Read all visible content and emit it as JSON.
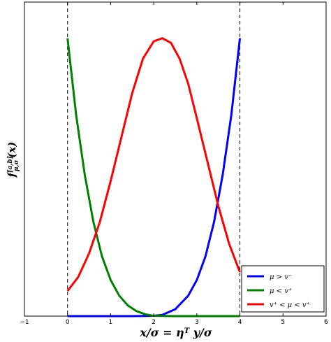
{
  "chart_data": {
    "type": "line",
    "title": "",
    "xlabel": "x/σ = η",
    "xlabel_sup": "T",
    "xlabel_tail": " y/σ",
    "ylabel": "f",
    "ylabel_sup": "[a,b]",
    "ylabel_sub": "μ,σ",
    "ylabel_tail": "(x)",
    "xlim": [
      -1,
      6
    ],
    "ylim": [
      0,
      1.0
    ],
    "x_ticks": [
      -1,
      0,
      1,
      2,
      3,
      4,
      5,
      6
    ],
    "y_ticks_shown": false,
    "grid": false,
    "legend_position": "lower-right",
    "vlines": [
      0,
      4
    ],
    "series": [
      {
        "name": "μ > v⁻",
        "color": "#0000ff",
        "x": [
          0,
          1.0,
          1.5,
          2.0,
          2.2,
          2.5,
          2.8,
          3.0,
          3.2,
          3.4,
          3.6,
          3.8,
          4.0
        ],
        "y": [
          0.0,
          0.0,
          0.0,
          0.001,
          0.004,
          0.022,
          0.065,
          0.115,
          0.19,
          0.3,
          0.45,
          0.64,
          0.885
        ]
      },
      {
        "name": "μ < v⁺",
        "color": "#008000",
        "x": [
          0,
          0.2,
          0.4,
          0.6,
          0.8,
          1.0,
          1.2,
          1.4,
          1.6,
          1.8,
          2.0,
          2.5,
          3.0,
          4.0
        ],
        "y": [
          0.885,
          0.64,
          0.45,
          0.3,
          0.19,
          0.115,
          0.065,
          0.034,
          0.016,
          0.006,
          0.001,
          0.0,
          0.0,
          0.0
        ]
      },
      {
        "name": "v⁺ < μ < v⁺",
        "color": "#ff0000",
        "x": [
          0,
          0.25,
          0.5,
          0.75,
          1.0,
          1.25,
          1.5,
          1.75,
          2.0,
          2.2,
          2.4,
          2.6,
          2.8,
          3.0,
          3.25,
          3.5,
          3.75,
          4.0
        ],
        "y": [
          0.08,
          0.125,
          0.2,
          0.3,
          0.43,
          0.57,
          0.71,
          0.82,
          0.875,
          0.885,
          0.87,
          0.82,
          0.74,
          0.63,
          0.49,
          0.35,
          0.23,
          0.14
        ]
      }
    ]
  }
}
